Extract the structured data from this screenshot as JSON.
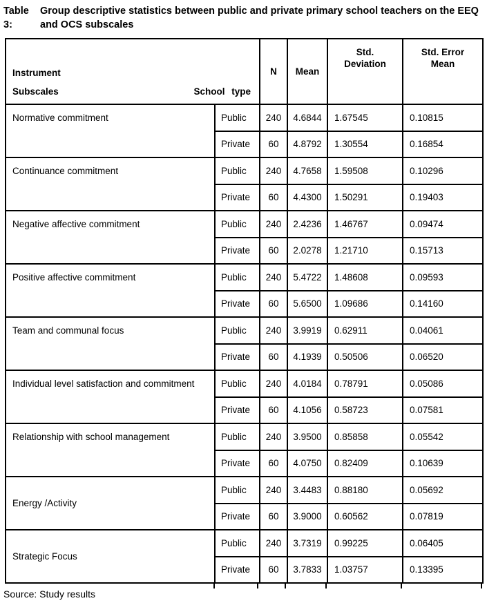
{
  "caption": {
    "label": "Table 3:",
    "text": "Group descriptive statistics between public and private primary school teachers on the EEQ and OCS subscales"
  },
  "table": {
    "header": {
      "instrument": "Instrument",
      "subscales": "Subscales",
      "school_type": "School type",
      "n": "N",
      "mean": "Mean",
      "std_deviation": "Std. Deviation",
      "std_error_mean": "Std. Error Mean"
    },
    "groups": [
      {
        "label": "Normative commitment",
        "public": {
          "school_type": "Public",
          "n": "240",
          "mean": "4.6844",
          "std_deviation": "1.67545",
          "std_error_mean": "0.10815"
        },
        "private": {
          "school_type": "Private",
          "n": "60",
          "mean": "4.8792",
          "std_deviation": "1.30554",
          "std_error_mean": "0.16854"
        }
      },
      {
        "label": "Continuance commitment",
        "public": {
          "school_type": "Public",
          "n": "240",
          "mean": "4.7658",
          "std_deviation": "1.59508",
          "std_error_mean": "0.10296"
        },
        "private": {
          "school_type": "Private",
          "n": "60",
          "mean": "4.4300",
          "std_deviation": "1.50291",
          "std_error_mean": "0.19403"
        }
      },
      {
        "label": "Negative affective commitment",
        "public": {
          "school_type": "Public",
          "n": "240",
          "mean": "2.4236",
          "std_deviation": "1.46767",
          "std_error_mean": "0.09474"
        },
        "private": {
          "school_type": "Private",
          "n": "60",
          "mean": "2.0278",
          "std_deviation": "1.21710",
          "std_error_mean": "0.15713"
        }
      },
      {
        "label": "Positive affective commitment",
        "public": {
          "school_type": "Public",
          "n": "240",
          "mean": "5.4722",
          "std_deviation": "1.48608",
          "std_error_mean": "0.09593"
        },
        "private": {
          "school_type": "Private",
          "n": "60",
          "mean": "5.6500",
          "std_deviation": "1.09686",
          "std_error_mean": "0.14160"
        }
      },
      {
        "label": "Team and communal focus",
        "public": {
          "school_type": "Public",
          "n": "240",
          "mean": "3.9919",
          "std_deviation": "0.62911",
          "std_error_mean": "0.04061"
        },
        "private": {
          "school_type": "Private",
          "n": "60",
          "mean": "4.1939",
          "std_deviation": "0.50506",
          "std_error_mean": "0.06520"
        }
      },
      {
        "label": "Individual level satisfaction and commitment",
        "public": {
          "school_type": "Public",
          "n": "240",
          "mean": "4.0184",
          "std_deviation": "0.78791",
          "std_error_mean": "0.05086"
        },
        "private": {
          "school_type": "Private",
          "n": "60",
          "mean": "4.1056",
          "std_deviation": "0.58723",
          "std_error_mean": "0.07581"
        }
      },
      {
        "label": "Relationship with school management",
        "public": {
          "school_type": "Public",
          "n": "240",
          "mean": "3.9500",
          "std_deviation": "0.85858",
          "std_error_mean": "0.05542"
        },
        "private": {
          "school_type": "Private",
          "n": "60",
          "mean": "4.0750",
          "std_deviation": "0.82409",
          "std_error_mean": "0.10639"
        }
      },
      {
        "label": "Energy /Activity",
        "public": {
          "school_type": "Public",
          "n": "240",
          "mean": "3.4483",
          "std_deviation": "0.88180",
          "std_error_mean": "0.05692"
        },
        "private": {
          "school_type": "Private",
          "n": "60",
          "mean": "3.9000",
          "std_deviation": "0.60562",
          "std_error_mean": "0.07819"
        }
      },
      {
        "label": "Strategic Focus",
        "public": {
          "school_type": "Public",
          "n": "240",
          "mean": "3.7319",
          "std_deviation": "0.99225",
          "std_error_mean": "0.06405"
        },
        "private": {
          "school_type": "Private",
          "n": "60",
          "mean": "3.7833",
          "std_deviation": "1.03757",
          "std_error_mean": "0.13395"
        }
      }
    ]
  },
  "source": "Source: Study results"
}
